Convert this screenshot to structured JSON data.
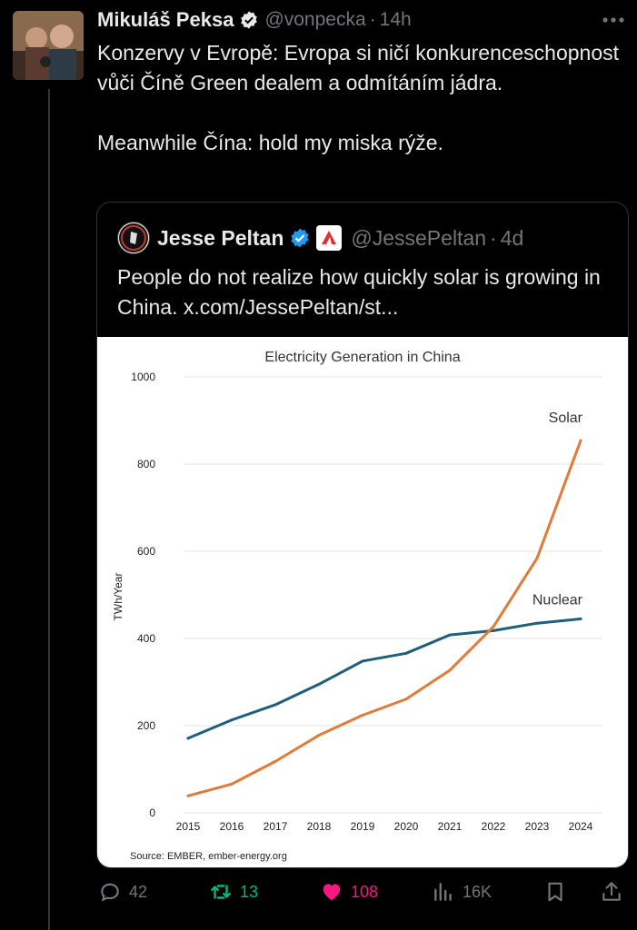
{
  "tweet": {
    "author_name": "Mikuláš Peksa",
    "author_handle": "@vonpecka",
    "time_sep": "·",
    "time": "14h",
    "text": "Konzervy v Evropě: Evropa si ničí konkurenceschopnost vůči Číně Green dealem a odmítáním jádra.\n\nMeanwhile Čína: hold my miska rýže."
  },
  "quote": {
    "author_name": "Jesse Peltan",
    "author_handle": "@JessePeltan",
    "time_sep": "·",
    "time": "4d",
    "text": "People do not realize how quickly solar is growing in China. x.com/JessePeltan/st..."
  },
  "chart_data": {
    "type": "line",
    "title": "Electricity Generation in China",
    "ylabel": "TWh/Year",
    "xlabel": "",
    "x": [
      "2015",
      "2016",
      "2017",
      "2018",
      "2019",
      "2020",
      "2021",
      "2022",
      "2023",
      "2024"
    ],
    "ylim": [
      0,
      1000
    ],
    "yticks": [
      "0",
      "200",
      "400",
      "600",
      "800",
      "1000"
    ],
    "grid": true,
    "series": [
      {
        "name": "Solar",
        "color": "#e07b39",
        "values": [
          39,
          66,
          118,
          178,
          224,
          261,
          327,
          427,
          584,
          854
        ]
      },
      {
        "name": "Nuclear",
        "color": "#1f5f7a",
        "values": [
          171,
          213,
          248,
          295,
          348,
          366,
          408,
          418,
          435,
          445
        ]
      }
    ],
    "source": "Source: EMBER, ember-energy.org"
  },
  "actions": {
    "replies": "42",
    "reposts": "13",
    "likes": "108",
    "views": "16K"
  },
  "colors": {
    "verified": "#1d9bf0",
    "repost": "#00ba7c",
    "like": "#f91880",
    "muted": "#71767b"
  }
}
